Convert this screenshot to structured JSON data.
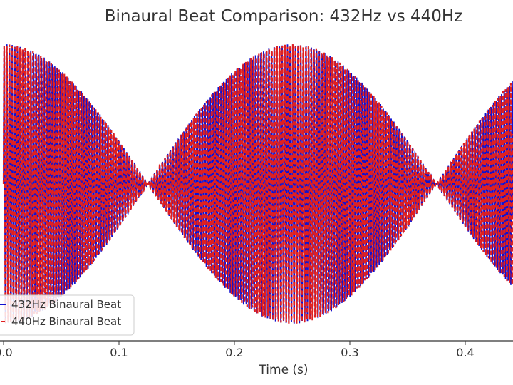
{
  "chart_data": {
    "type": "line",
    "title": "Binaural Beat Comparison: 432Hz vs 440Hz",
    "xlabel": "Time (s)",
    "ylabel": "",
    "xlim": [
      0,
      0.45
    ],
    "ylim": [
      -2.1,
      2.1
    ],
    "x_ticks": [
      {
        "value": 0.0,
        "label": "0.0"
      },
      {
        "value": 0.1,
        "label": "0.1"
      },
      {
        "value": 0.2,
        "label": "0.2"
      },
      {
        "value": 0.3,
        "label": "0.3"
      },
      {
        "value": 0.4,
        "label": "0.4"
      }
    ],
    "grid": false,
    "legend_position": "bottom-left",
    "envelope_beat_hz": 4,
    "series": [
      {
        "name": "432Hz Binaural Beat",
        "carrier_hz": 432,
        "offset_hz": 4,
        "color": "#1010d0",
        "style": "solid"
      },
      {
        "name": "440Hz Binaural Beat",
        "carrier_hz": 440,
        "offset_hz": 4,
        "color": "#e02020",
        "style": "dashed"
      }
    ]
  }
}
